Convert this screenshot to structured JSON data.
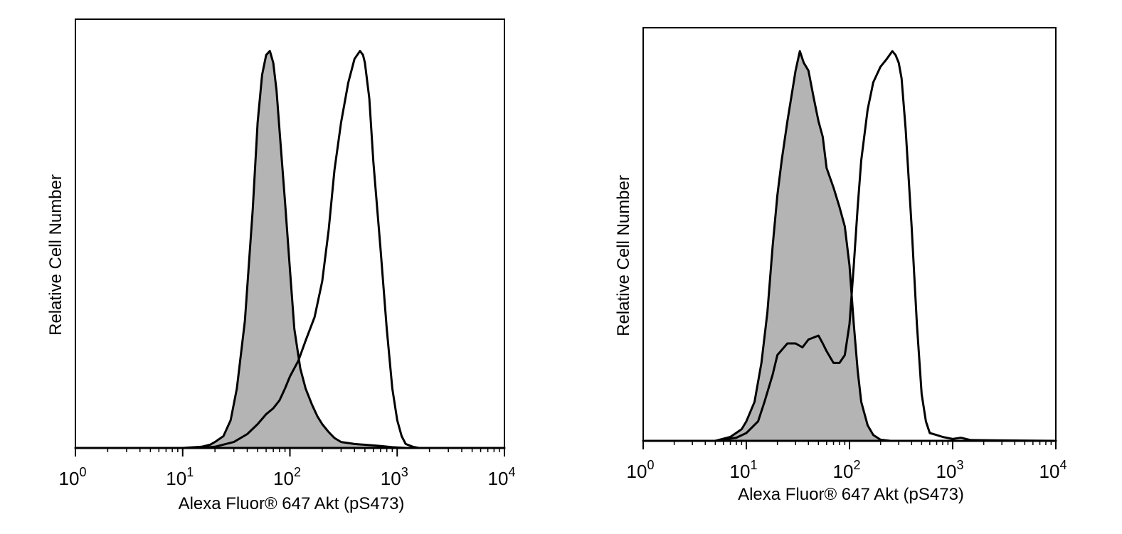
{
  "chart_data": [
    {
      "type": "area",
      "xlabel": "Alexa Fluor® 647 Akt (pS473)",
      "ylabel": "Relative Cell Number",
      "xscale": "log",
      "xlim": [
        1,
        10000
      ],
      "ylim": [
        0,
        1.08
      ],
      "grid": false,
      "xticks": [
        {
          "base": "10",
          "exp": "0"
        },
        {
          "base": "10",
          "exp": "1"
        },
        {
          "base": "10",
          "exp": "2"
        },
        {
          "base": "10",
          "exp": "3"
        },
        {
          "base": "10",
          "exp": "4"
        }
      ],
      "series": [
        {
          "style": "filled",
          "fill": "#b4b4b4",
          "x": [
            1,
            10,
            15,
            18,
            20,
            24,
            28,
            32,
            38,
            45,
            50,
            55,
            60,
            65,
            70,
            75,
            80,
            90,
            100,
            110,
            125,
            140,
            160,
            180,
            200,
            230,
            260,
            300,
            400,
            500,
            700,
            900,
            1200,
            2000,
            10000
          ],
          "y": [
            0,
            0,
            0.003,
            0.008,
            0.015,
            0.03,
            0.07,
            0.15,
            0.32,
            0.6,
            0.82,
            0.94,
            0.99,
            1.0,
            0.97,
            0.9,
            0.8,
            0.62,
            0.45,
            0.3,
            0.2,
            0.15,
            0.11,
            0.08,
            0.06,
            0.04,
            0.025,
            0.015,
            0.01,
            0.008,
            0.005,
            0.002,
            0,
            0,
            0
          ]
        },
        {
          "style": "outline",
          "fill": "none",
          "x": [
            1,
            15,
            20,
            30,
            40,
            50,
            60,
            70,
            80,
            90,
            100,
            120,
            140,
            170,
            200,
            230,
            260,
            300,
            350,
            400,
            450,
            480,
            500,
            550,
            600,
            700,
            800,
            900,
            1000,
            1100,
            1200,
            1400,
            1600,
            10000
          ],
          "y": [
            0,
            0,
            0.003,
            0.015,
            0.035,
            0.06,
            0.085,
            0.1,
            0.12,
            0.15,
            0.18,
            0.22,
            0.27,
            0.33,
            0.42,
            0.55,
            0.7,
            0.82,
            0.92,
            0.98,
            1.0,
            0.99,
            0.97,
            0.88,
            0.72,
            0.5,
            0.3,
            0.15,
            0.07,
            0.03,
            0.01,
            0.003,
            0,
            0
          ]
        }
      ]
    },
    {
      "type": "area",
      "xlabel": "Alexa Fluor® 647 Akt (pS473)",
      "ylabel": "Relative Cell Number",
      "xscale": "log",
      "xlim": [
        1,
        10000
      ],
      "ylim": [
        0,
        1.06
      ],
      "grid": false,
      "xticks": [
        {
          "base": "10",
          "exp": "0"
        },
        {
          "base": "10",
          "exp": "1"
        },
        {
          "base": "10",
          "exp": "2"
        },
        {
          "base": "10",
          "exp": "3"
        },
        {
          "base": "10",
          "exp": "4"
        }
      ],
      "series": [
        {
          "style": "filled",
          "fill": "#b4b4b4",
          "x": [
            1,
            5,
            7,
            9,
            10,
            12,
            14,
            16,
            18,
            20,
            22,
            25,
            28,
            30,
            33,
            36,
            40,
            45,
            50,
            55,
            60,
            70,
            80,
            90,
            100,
            110,
            120,
            130,
            150,
            170,
            200,
            250,
            10000
          ],
          "y": [
            0,
            0,
            0.01,
            0.03,
            0.05,
            0.1,
            0.2,
            0.33,
            0.5,
            0.63,
            0.72,
            0.82,
            0.9,
            0.95,
            1.0,
            0.97,
            0.95,
            0.88,
            0.82,
            0.78,
            0.7,
            0.65,
            0.6,
            0.55,
            0.45,
            0.3,
            0.18,
            0.1,
            0.04,
            0.015,
            0.003,
            0,
            0
          ]
        },
        {
          "style": "outline",
          "fill": "none",
          "x": [
            1,
            5,
            8,
            10,
            13,
            15,
            18,
            20,
            25,
            30,
            35,
            40,
            50,
            55,
            60,
            70,
            80,
            90,
            100,
            110,
            120,
            130,
            150,
            170,
            200,
            230,
            260,
            280,
            300,
            320,
            350,
            400,
            450,
            500,
            550,
            600,
            700,
            800,
            1000,
            1200,
            1500,
            10000
          ],
          "y": [
            0,
            0,
            0.008,
            0.02,
            0.05,
            0.1,
            0.17,
            0.22,
            0.25,
            0.25,
            0.24,
            0.26,
            0.27,
            0.25,
            0.23,
            0.2,
            0.2,
            0.22,
            0.3,
            0.45,
            0.6,
            0.72,
            0.85,
            0.92,
            0.96,
            0.98,
            1.0,
            0.99,
            0.97,
            0.93,
            0.8,
            0.55,
            0.3,
            0.12,
            0.05,
            0.02,
            0.015,
            0.01,
            0.005,
            0.008,
            0.002,
            0
          ]
        }
      ]
    }
  ]
}
